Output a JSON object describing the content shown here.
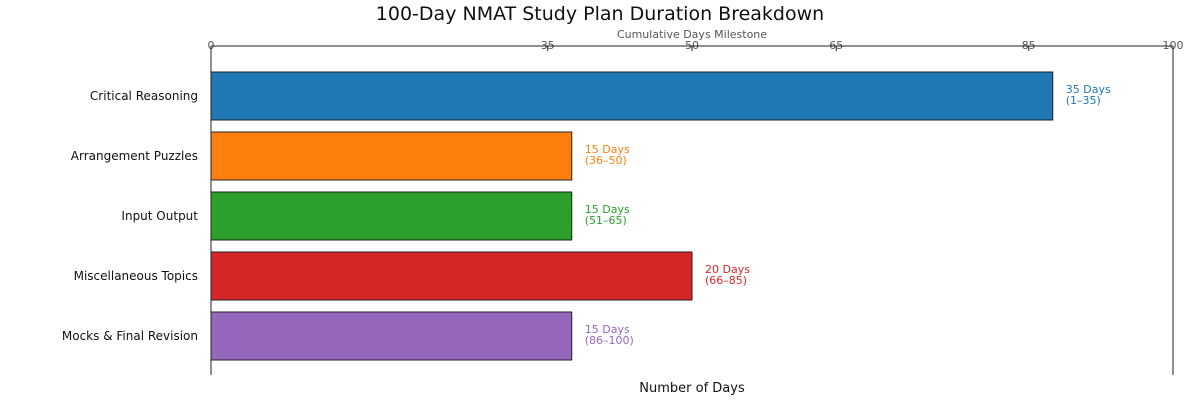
{
  "chart_data": {
    "type": "bar",
    "orientation": "horizontal",
    "title": "100-Day NMAT Study Plan Duration Breakdown",
    "xlabel": "Number of Days",
    "top_axis_label": "Cumulative Days Milestone",
    "top_ticks": [
      "0",
      "35",
      "50",
      "65",
      "85",
      "100"
    ],
    "top_tick_values": [
      0,
      35,
      50,
      65,
      85,
      100
    ],
    "categories": [
      "Critical Reasoning",
      "Arrangement Puzzles",
      "Input Output",
      "Miscellaneous Topics",
      "Mocks & Final Revision"
    ],
    "values": [
      35,
      15,
      15,
      20,
      15
    ],
    "bar_lengths": [
      35,
      15,
      15,
      20,
      15
    ],
    "labels": [
      [
        "35 Days",
        "(1–35)"
      ],
      [
        "15 Days",
        "(36–50)"
      ],
      [
        "15 Days",
        "(51–65)"
      ],
      [
        "20 Days",
        "(66–85)"
      ],
      [
        "15 Days",
        "(86–100)"
      ]
    ],
    "colors": [
      "#1f77b4",
      "#ff7f0e",
      "#2ca02c",
      "#d62728",
      "#9467bd"
    ],
    "xlim": [
      0,
      40
    ],
    "top_xlim": [
      0,
      100
    ],
    "grid": false,
    "legend": "none"
  }
}
